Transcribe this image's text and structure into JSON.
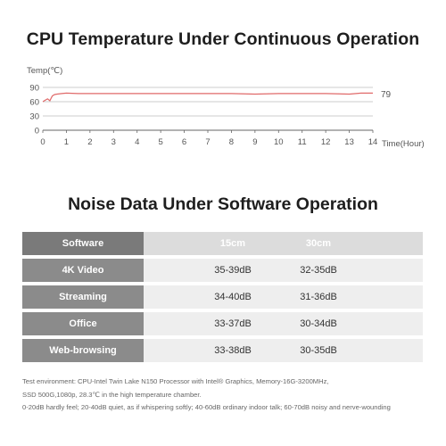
{
  "chart_title": "CPU Temperature Under Continuous Operation",
  "chart_data": {
    "type": "line",
    "title": "CPU Temperature Under Continuous Operation",
    "xlabel": "Time(Hour)",
    "ylabel": "Temp(℃)",
    "xlim": [
      0,
      14
    ],
    "ylim": [
      0,
      90
    ],
    "x_ticks": [
      "0",
      "1",
      "2",
      "3",
      "4",
      "5",
      "6",
      "7",
      "8",
      "9",
      "10",
      "11",
      "12",
      "13",
      "14"
    ],
    "y_ticks": [
      "0",
      "30",
      "60",
      "90"
    ],
    "end_label": "79",
    "series": [
      {
        "color": "#e06a6a",
        "x": [
          0,
          0.1,
          0.2,
          0.3,
          0.4,
          0.5,
          0.6,
          0.8,
          1.0,
          1.5,
          2,
          3,
          4,
          5,
          6,
          7,
          8,
          9,
          10,
          11,
          12,
          13,
          13.5,
          14
        ],
        "y": [
          60,
          63,
          66,
          62,
          72,
          75,
          76,
          77,
          78,
          77,
          77,
          77,
          77,
          77,
          77,
          77,
          77,
          76,
          77,
          77,
          77,
          76,
          78,
          78
        ]
      }
    ],
    "grid": true
  },
  "table_title": "Noise Data Under Software Operation",
  "table": {
    "headers": [
      "Software",
      "15cm",
      "30cm"
    ],
    "rows": [
      [
        "4K Video",
        "35-39dB",
        "32-35dB"
      ],
      [
        "Streaming",
        "34-40dB",
        "31-36dB"
      ],
      [
        "Office",
        "33-37dB",
        "30-34dB"
      ],
      [
        "Web-browsing",
        "33-38dB",
        "30-35dB"
      ]
    ]
  },
  "notes": [
    "Test environment: CPU-Intel Twin Lake N150 Processor with Intel® Graphics,  Memory-16G-3200MHz,",
    "SSD 500G,1080p, 28.3℃ in the high temperature chamber.",
    "0-20dB hardly feel; 20-40dB quiet, as if whispering softly; 40-60dB ordinary indoor talk; 60-70dB noisy and nerve-wounding"
  ]
}
